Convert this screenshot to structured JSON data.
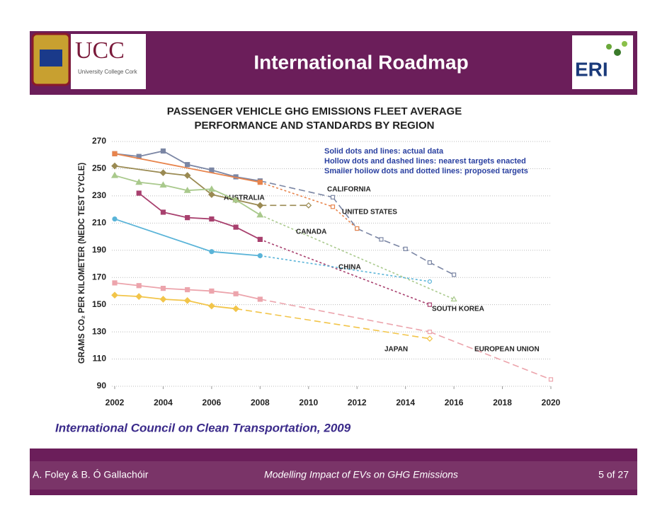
{
  "header": {
    "title": "International Roadmap",
    "logo_left": "UCC",
    "logo_left_subtitle": "University College Cork",
    "logo_right": "ERI"
  },
  "source": "International Council on Clean Transportation, 2009",
  "footer": {
    "authors": "A. Foley & B. Ó Gallachóir",
    "talk": "Modelling Impact of EVs on GHG Emissions",
    "page": "5 of 27"
  },
  "chart_data": {
    "type": "line",
    "title": [
      "PASSENGER VEHICLE GHG EMISSIONS FLEET AVERAGE",
      "PERFORMANCE AND STANDARDS BY REGION"
    ],
    "y_label": "GRAMS CO₂ PER KILOMETER (NEDC TEST CYCLE)",
    "notes": [
      "Solid dots and lines: actual data",
      "Hollow dots and dashed lines: nearest targets enacted",
      "Smaller hollow dots and dotted lines: proposed targets"
    ],
    "xlim": [
      2002,
      2020
    ],
    "xticks": [
      2002,
      2004,
      2006,
      2008,
      2010,
      2012,
      2014,
      2016,
      2018,
      2020
    ],
    "ylim": [
      90,
      270
    ],
    "yticks": [
      90,
      110,
      130,
      150,
      170,
      190,
      210,
      230,
      250,
      270
    ],
    "grid": true,
    "series": [
      {
        "name": "CALIFORNIA",
        "color": "#7b86a4",
        "marker": "square",
        "x": [
          2002,
          2003,
          2004,
          2005,
          2006,
          2007,
          2008
        ],
        "values": [
          261,
          259,
          263,
          253,
          249,
          244,
          241
        ],
        "projected_style": "dashed",
        "projected_x": [
          2011,
          2012,
          2013,
          2014,
          2015,
          2016
        ],
        "projected_values": [
          229,
          206,
          198,
          191,
          181,
          172
        ]
      },
      {
        "name": "UNITED STATES",
        "color": "#e8844c",
        "marker": "square",
        "x": [
          2002,
          2008
        ],
        "values": [
          261,
          240
        ],
        "projected_style": "dotted",
        "projected_x": [
          2011,
          2012
        ],
        "projected_values": [
          222,
          206
        ]
      },
      {
        "name": "AUSTRALIA",
        "color": "#9a8a52",
        "marker": "diamond",
        "x": [
          2002,
          2004,
          2005,
          2006,
          2007,
          2008
        ],
        "values": [
          252,
          247,
          245,
          231,
          227,
          223
        ],
        "projected_style": "dashed",
        "projected_x": [
          2010
        ],
        "projected_values": [
          223
        ]
      },
      {
        "name": "CANADA",
        "color": "#a9c98c",
        "marker": "triangle",
        "x": [
          2002,
          2003,
          2004,
          2005,
          2006,
          2007,
          2008
        ],
        "values": [
          245,
          240,
          238,
          234,
          235,
          227,
          216
        ],
        "projected_style": "dotted",
        "projected_x": [
          2016
        ],
        "projected_values": [
          154
        ]
      },
      {
        "name": "SOUTH KOREA",
        "color": "#a8406e",
        "marker": "square",
        "x": [
          2003,
          2004,
          2005,
          2006,
          2007,
          2008
        ],
        "values": [
          232,
          218,
          214,
          213,
          207,
          198
        ],
        "projected_style": "dotted",
        "projected_x": [
          2015
        ],
        "projected_values": [
          150
        ]
      },
      {
        "name": "CHINA",
        "color": "#5ab4d8",
        "marker": "circle",
        "x": [
          2002,
          2006,
          2008
        ],
        "values": [
          213,
          189,
          186
        ],
        "projected_style": "dotted",
        "projected_x": [
          2015
        ],
        "projected_values": [
          167
        ]
      },
      {
        "name": "EUROPEAN UNION",
        "color": "#eca4ac",
        "marker": "square",
        "x": [
          2002,
          2003,
          2004,
          2005,
          2006,
          2007,
          2008
        ],
        "values": [
          166,
          164,
          162,
          161,
          160,
          158,
          154
        ],
        "projected_style": "dashed",
        "projected_x": [
          2015,
          2020
        ],
        "projected_values": [
          130,
          95
        ]
      },
      {
        "name": "JAPAN",
        "color": "#f2c54a",
        "marker": "diamond",
        "x": [
          2002,
          2003,
          2004,
          2005,
          2006,
          2007
        ],
        "values": [
          157,
          156,
          154,
          153,
          149,
          147
        ],
        "projected_style": "dashed",
        "projected_x": [
          2015
        ],
        "projected_values": [
          125
        ]
      }
    ]
  }
}
